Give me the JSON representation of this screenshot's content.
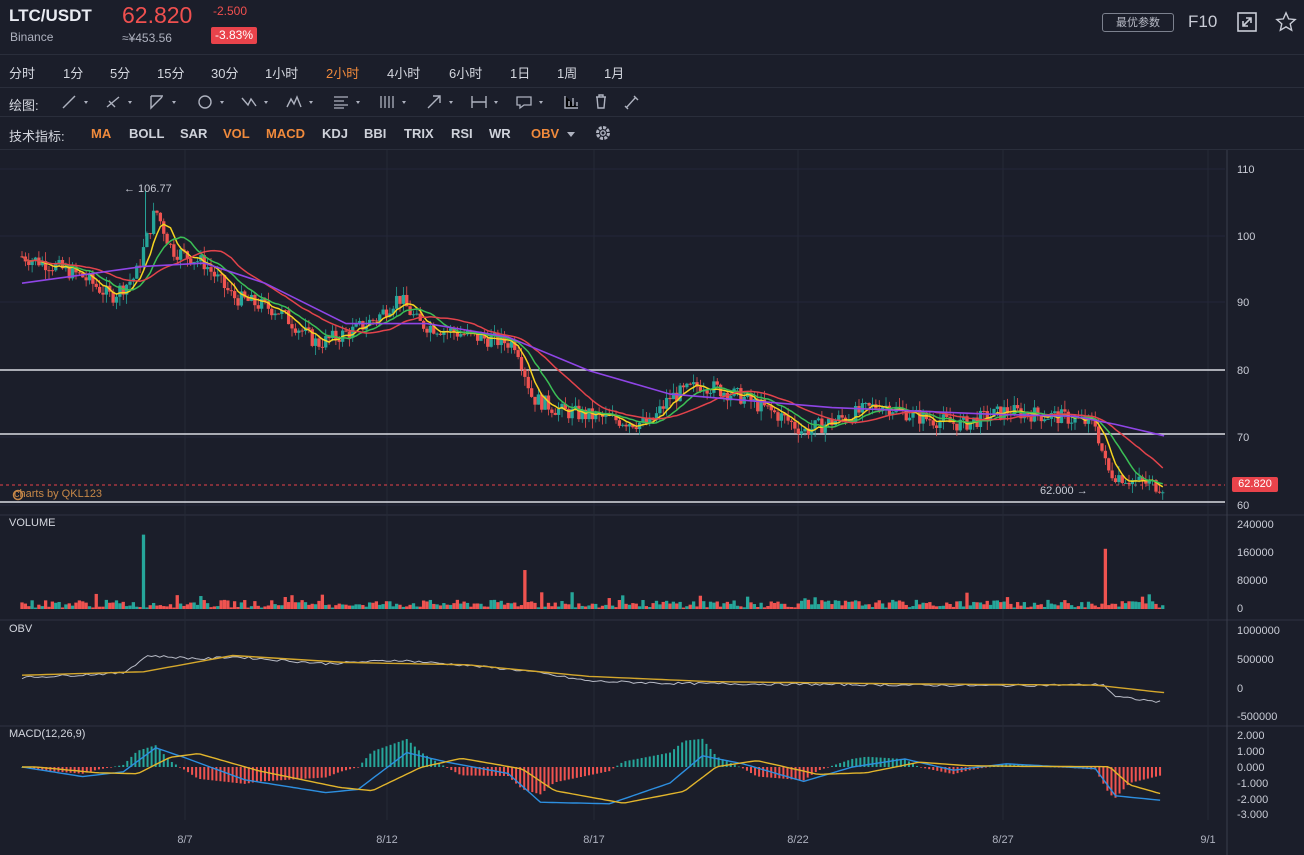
{
  "header": {
    "symbol": "LTC/USDT",
    "exchange": "Binance",
    "price": "62.820",
    "price_cny": "≈¥453.56",
    "change": "-2.500",
    "change_pct": "-3.83%",
    "optimize_button": "最优参数",
    "f10_label": "F10"
  },
  "periods": [
    "分时",
    "1分",
    "5分",
    "15分",
    "30分",
    "1小时",
    "2小时",
    "4小时",
    "6小时",
    "1日",
    "1周",
    "1月"
  ],
  "active_period": "2小时",
  "drawing": {
    "label": "绘图:"
  },
  "indicators": {
    "label": "技术指标:",
    "items": [
      {
        "name": "MA",
        "active": true
      },
      {
        "name": "BOLL",
        "active": false
      },
      {
        "name": "SAR",
        "active": false
      },
      {
        "name": "VOL",
        "active": true
      },
      {
        "name": "MACD",
        "active": true
      },
      {
        "name": "KDJ",
        "active": false
      },
      {
        "name": "BBI",
        "active": false
      },
      {
        "name": "TRIX",
        "active": false
      },
      {
        "name": "RSI",
        "active": false
      },
      {
        "name": "WR",
        "active": false
      },
      {
        "name": "OBV",
        "active": true
      }
    ]
  },
  "watermark": "charts by QKL123",
  "current_price_tag": "62.820",
  "high_label": "← 106.77",
  "low_label": "62.000 →",
  "colors": {
    "up": "#26a69a",
    "down": "#ef5350",
    "accent": "#f08a3c",
    "ma_short": "#f5d321",
    "ma_mid": "#3bbf55",
    "ma_long": "#e2434b",
    "ma_slow": "#8f45e6"
  },
  "chart_data": {
    "type": "line",
    "price_axis": {
      "ticks": [
        "110",
        "100",
        "90",
        "80",
        "70",
        "60"
      ],
      "ylim": [
        60,
        110
      ]
    },
    "volume_axis": {
      "ticks": [
        "240000",
        "160000",
        "80000",
        "0"
      ]
    },
    "obv_axis": {
      "ticks": [
        "1000000",
        "500000",
        "0",
        "-500000"
      ]
    },
    "macd_axis": {
      "ticks": [
        "2.000",
        "1.000",
        "0.000",
        "-1.000",
        "-2.000",
        "-3.000"
      ]
    },
    "x_ticks": [
      "8/7",
      "8/12",
      "8/17",
      "8/22",
      "8/27",
      "9/1"
    ],
    "horizontal_lines": [
      80,
      70.5,
      60
    ],
    "price_path": [
      [
        0,
        97
      ],
      [
        0.6,
        96
      ],
      [
        1.5,
        94
      ],
      [
        2.2,
        91
      ],
      [
        2.8,
        94
      ],
      [
        3.3,
        104
      ],
      [
        3.7,
        98
      ],
      [
        4.5,
        96
      ],
      [
        5.2,
        91
      ],
      [
        6.3,
        89
      ],
      [
        7.3,
        84
      ],
      [
        8.2,
        86
      ],
      [
        8.8,
        88
      ],
      [
        9.3,
        91
      ],
      [
        9.8,
        87
      ],
      [
        11.2,
        85
      ],
      [
        12.2,
        84
      ],
      [
        12.6,
        76
      ],
      [
        13.3,
        74
      ],
      [
        14.3,
        73
      ],
      [
        15.5,
        72
      ],
      [
        16,
        76
      ],
      [
        16.8,
        78
      ],
      [
        17.8,
        76
      ],
      [
        18.8,
        73
      ],
      [
        19.3,
        71
      ],
      [
        20.3,
        73
      ],
      [
        21.2,
        75
      ],
      [
        22.2,
        73
      ],
      [
        23.2,
        72
      ],
      [
        24.3,
        74
      ],
      [
        25.8,
        73
      ],
      [
        26.5,
        72
      ],
      [
        26.8,
        65
      ],
      [
        27.5,
        63.5
      ],
      [
        28.2,
        62.8
      ]
    ],
    "ma_slow_path": [
      [
        0,
        93
      ],
      [
        3,
        95.5
      ],
      [
        4.5,
        96
      ],
      [
        6,
        93
      ],
      [
        8,
        87
      ],
      [
        10,
        87
      ],
      [
        12,
        85
      ],
      [
        14,
        80
      ],
      [
        16,
        76.5
      ],
      [
        18,
        75.5
      ],
      [
        20,
        74.5
      ],
      [
        22,
        74
      ],
      [
        24,
        73.5
      ],
      [
        26,
        73.2
      ],
      [
        27,
        72
      ],
      [
        28.2,
        70.3
      ]
    ],
    "volume_spikes": [
      {
        "x": 3.0,
        "v": 210000
      },
      {
        "x": 12.4,
        "v": 110000
      },
      {
        "x": 26.75,
        "v": 170000
      }
    ],
    "macd_lines": {
      "macd_min": -2.3,
      "macd_max": 1.3
    }
  }
}
